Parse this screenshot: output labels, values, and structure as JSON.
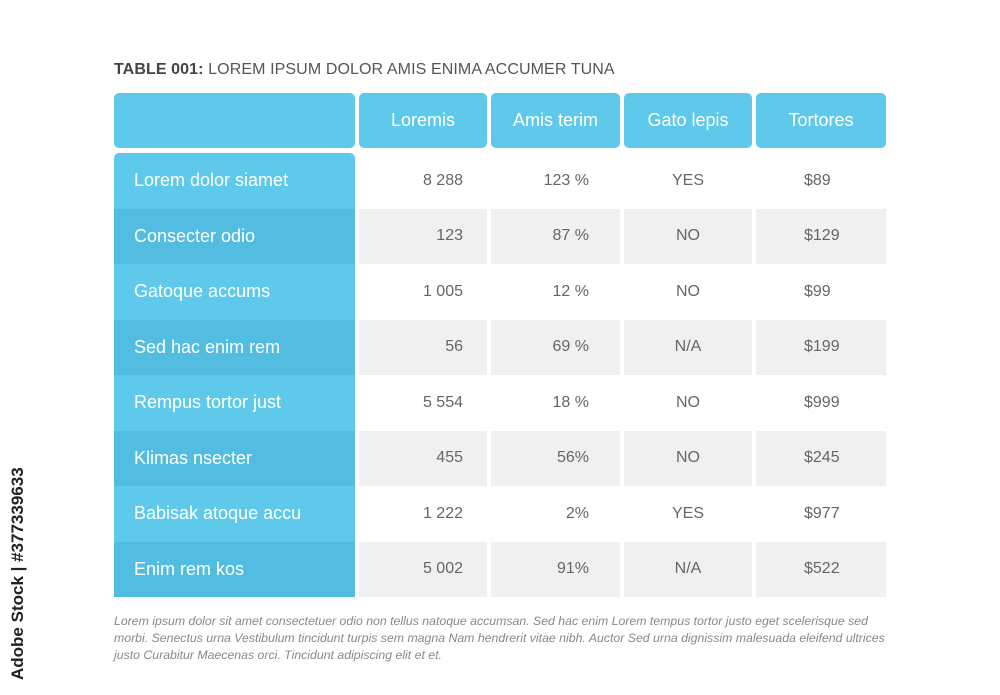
{
  "title": {
    "bold": "TABLE 001:",
    "text": " LOREM IPSUM DOLOR AMIS ENIMA ACCUMER TUNA"
  },
  "columns": [
    "Loremis",
    "Amis terim",
    "Gato lepis",
    "Tortores"
  ],
  "rows": [
    {
      "label": "Lorem dolor siamet",
      "values": [
        "8 288",
        "123 %",
        "YES",
        "$89"
      ]
    },
    {
      "label": "Consecter odio",
      "values": [
        "123",
        "87 %",
        "NO",
        "$129"
      ]
    },
    {
      "label": "Gatoque accums",
      "values": [
        "1 005",
        "12 %",
        "NO",
        "$99"
      ]
    },
    {
      "label": "Sed hac enim rem",
      "values": [
        "56",
        "69 %",
        "N/A",
        "$199"
      ]
    },
    {
      "label": "Rempus tortor just",
      "values": [
        "5 554",
        "18 %",
        "NO",
        "$999"
      ]
    },
    {
      "label": "Klimas nsecter",
      "values": [
        "455",
        "56%",
        "NO",
        "$245"
      ]
    },
    {
      "label": "Babisak atoque accu",
      "values": [
        "1 222",
        "2%",
        "YES",
        "$977"
      ]
    },
    {
      "label": "Enim rem kos",
      "values": [
        "5 002",
        "91%",
        "N/A",
        "$522"
      ]
    }
  ],
  "footnote": "Lorem ipsum dolor sit amet consectetuer odio non tellus natoque accumsan. Sed hac enim Lorem tempus tortor justo eget scelerisque sed morbi. Senectus urna Vestibulum tincidunt turpis sem magna Nam hendrerit vitae nibh. Auctor Sed urna dignissim malesuada eleifend ultrices justo Curabitur Maecenas orci. Tincidunt adipiscing elit et et.",
  "watermark": "Adobe Stock | #377339633",
  "colors": {
    "header": "#5ec9ea",
    "row_alt_label": "#52bde0",
    "row_alt_bg": "#f0f0f0"
  }
}
